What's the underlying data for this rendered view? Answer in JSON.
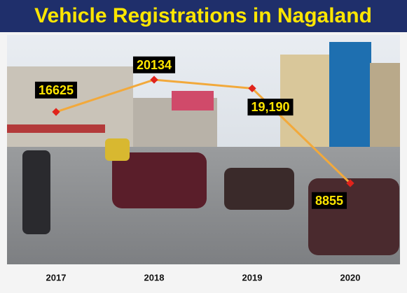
{
  "chart_data": {
    "type": "line",
    "title": "Vehicle Registrations in Nagaland",
    "categories": [
      "2017",
      "2018",
      "2019",
      "2020"
    ],
    "values": [
      16625,
      20134,
      19190,
      8855
    ],
    "value_labels": [
      "16625",
      "20134",
      "19,190",
      "8855"
    ],
    "color": "#f2a93b",
    "marker_color": "#e0231c"
  }
}
